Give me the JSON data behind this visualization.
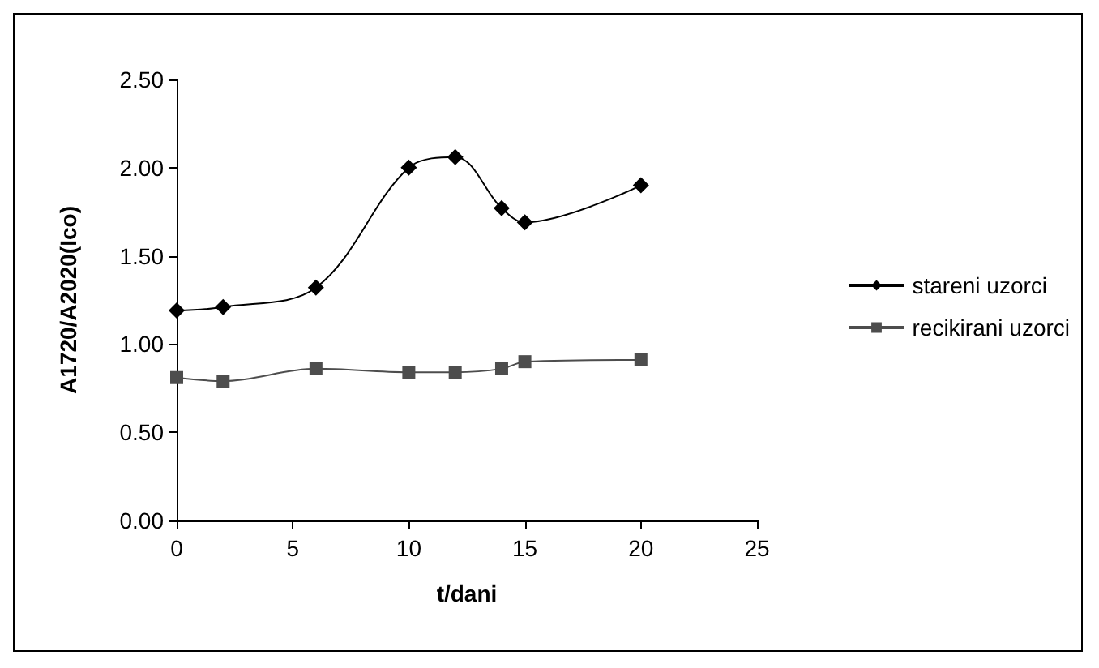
{
  "chart_data": {
    "type": "line",
    "xlabel": "t/dani",
    "ylabel": "A1720/A2020(Ico)",
    "x": [
      0,
      2,
      6,
      10,
      12,
      14,
      15,
      20
    ],
    "series": [
      {
        "name": "stareni uzorci",
        "color": "#000000",
        "marker": "diamond",
        "values": [
          1.19,
          1.21,
          1.32,
          2.0,
          2.06,
          1.77,
          1.69,
          1.9
        ]
      },
      {
        "name": "recikirani uzorci",
        "color": "#4d4d4d",
        "marker": "square",
        "values": [
          0.81,
          0.79,
          0.86,
          0.84,
          0.84,
          0.86,
          0.9,
          0.91
        ]
      }
    ],
    "xlim": [
      0,
      25
    ],
    "xticks": [
      0,
      5,
      10,
      15,
      20,
      25
    ],
    "ylim": [
      0,
      2.5
    ],
    "yticks": [
      {
        "value": 0,
        "label": "0.00"
      },
      {
        "value": 0.5,
        "label": "0.50"
      },
      {
        "value": 1,
        "label": "1.00"
      },
      {
        "value": 1.5,
        "label": "1.50"
      },
      {
        "value": 2,
        "label": "2.00"
      },
      {
        "value": 2.5,
        "label": "2.50"
      }
    ],
    "grid": false,
    "legend": "right"
  }
}
